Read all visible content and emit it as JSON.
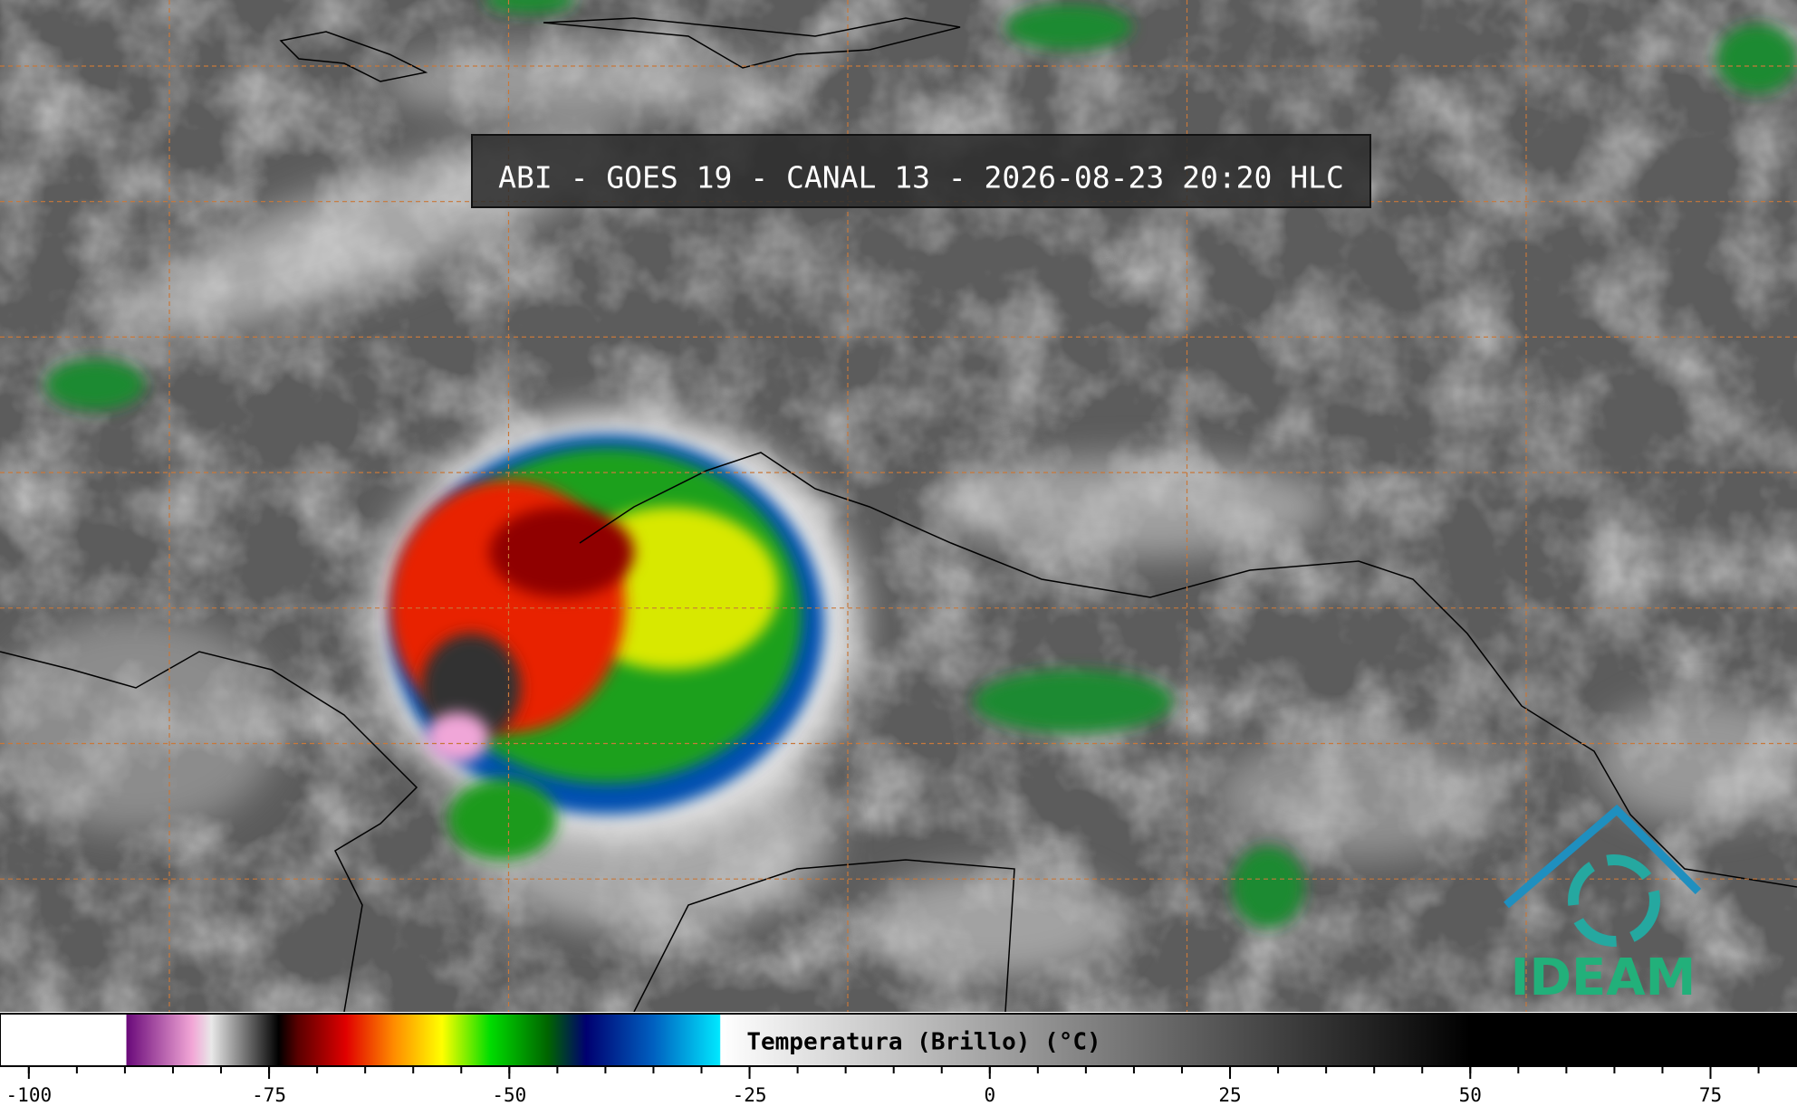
{
  "title": "ABI - GOES 19 - CANAL 13 - 2026-08-23 20:20 HLC",
  "logo": "IDEAM",
  "colorbar": {
    "label": "Temperatura (Brillo) (°C)",
    "xlim": [
      -103,
      84
    ],
    "ticks": [
      -100,
      -75,
      -50,
      -25,
      0,
      25,
      50,
      75
    ],
    "minor_step": 5,
    "stops": [
      {
        "value": -103,
        "color": "#ffffff"
      },
      {
        "value": -89.9,
        "color": "#ffffff"
      },
      {
        "value": -89.8,
        "color": "#6a0a7a"
      },
      {
        "value": -83,
        "color": "#f2a6d6"
      },
      {
        "value": -81,
        "color": "#e8e8e8"
      },
      {
        "value": -74,
        "color": "#000000"
      },
      {
        "value": -72,
        "color": "#5a0000"
      },
      {
        "value": -67,
        "color": "#e00000"
      },
      {
        "value": -62,
        "color": "#ff8c00"
      },
      {
        "value": -57,
        "color": "#ffff00"
      },
      {
        "value": -52,
        "color": "#00dd00"
      },
      {
        "value": -46,
        "color": "#006400"
      },
      {
        "value": -42,
        "color": "#000070"
      },
      {
        "value": -35,
        "color": "#0060c0"
      },
      {
        "value": -28.1,
        "color": "#00e8ff"
      },
      {
        "value": -28,
        "color": "#ffffff"
      },
      {
        "value": 50,
        "color": "#000000"
      },
      {
        "value": 84,
        "color": "#000000"
      }
    ]
  }
}
